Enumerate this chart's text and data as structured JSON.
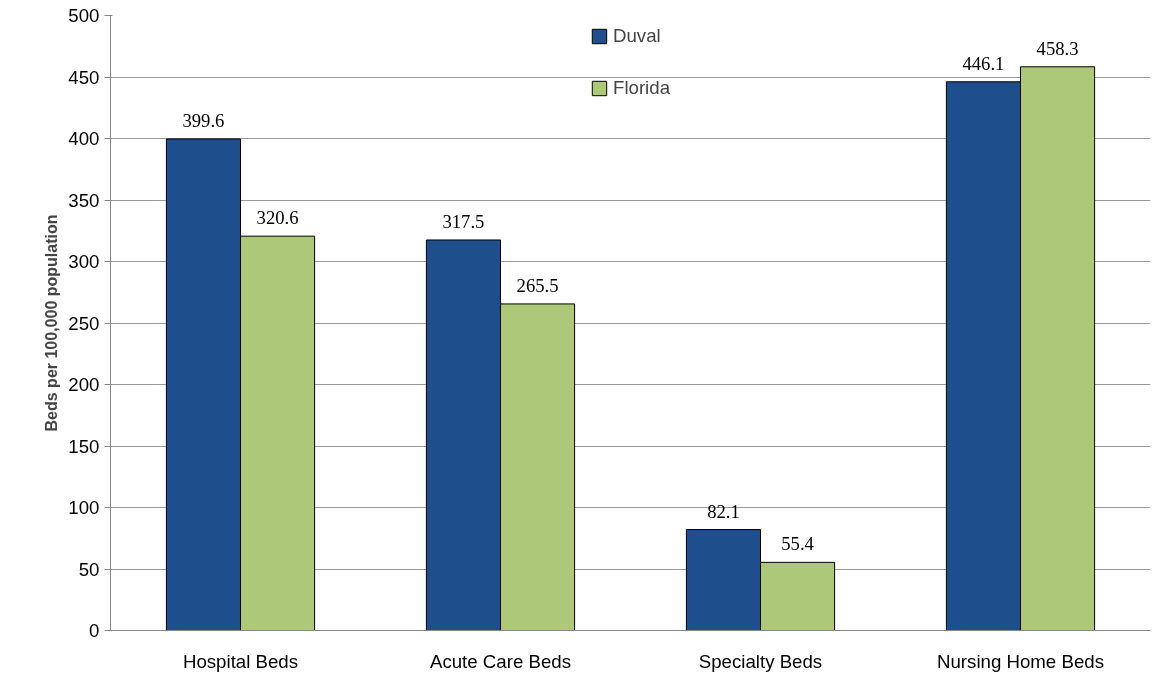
{
  "chart_data": {
    "type": "bar",
    "ylabel": "Beds per 100,000 population",
    "categories": [
      "Hospital Beds",
      "Acute Care Beds",
      "Specialty Beds",
      "Nursing Home Beds"
    ],
    "series": [
      {
        "name": "Duval",
        "color": "#1f4e8c",
        "values": [
          399.6,
          317.5,
          82.1,
          446.1
        ]
      },
      {
        "name": "Florida",
        "color": "#adc878",
        "values": [
          320.6,
          265.5,
          55.4,
          458.3
        ]
      }
    ],
    "ylim": [
      0,
      500
    ],
    "yticks": [
      0,
      50,
      100,
      150,
      200,
      250,
      300,
      350,
      400,
      450,
      500
    ],
    "grid": "y",
    "legend": "top",
    "data_labels": true
  }
}
